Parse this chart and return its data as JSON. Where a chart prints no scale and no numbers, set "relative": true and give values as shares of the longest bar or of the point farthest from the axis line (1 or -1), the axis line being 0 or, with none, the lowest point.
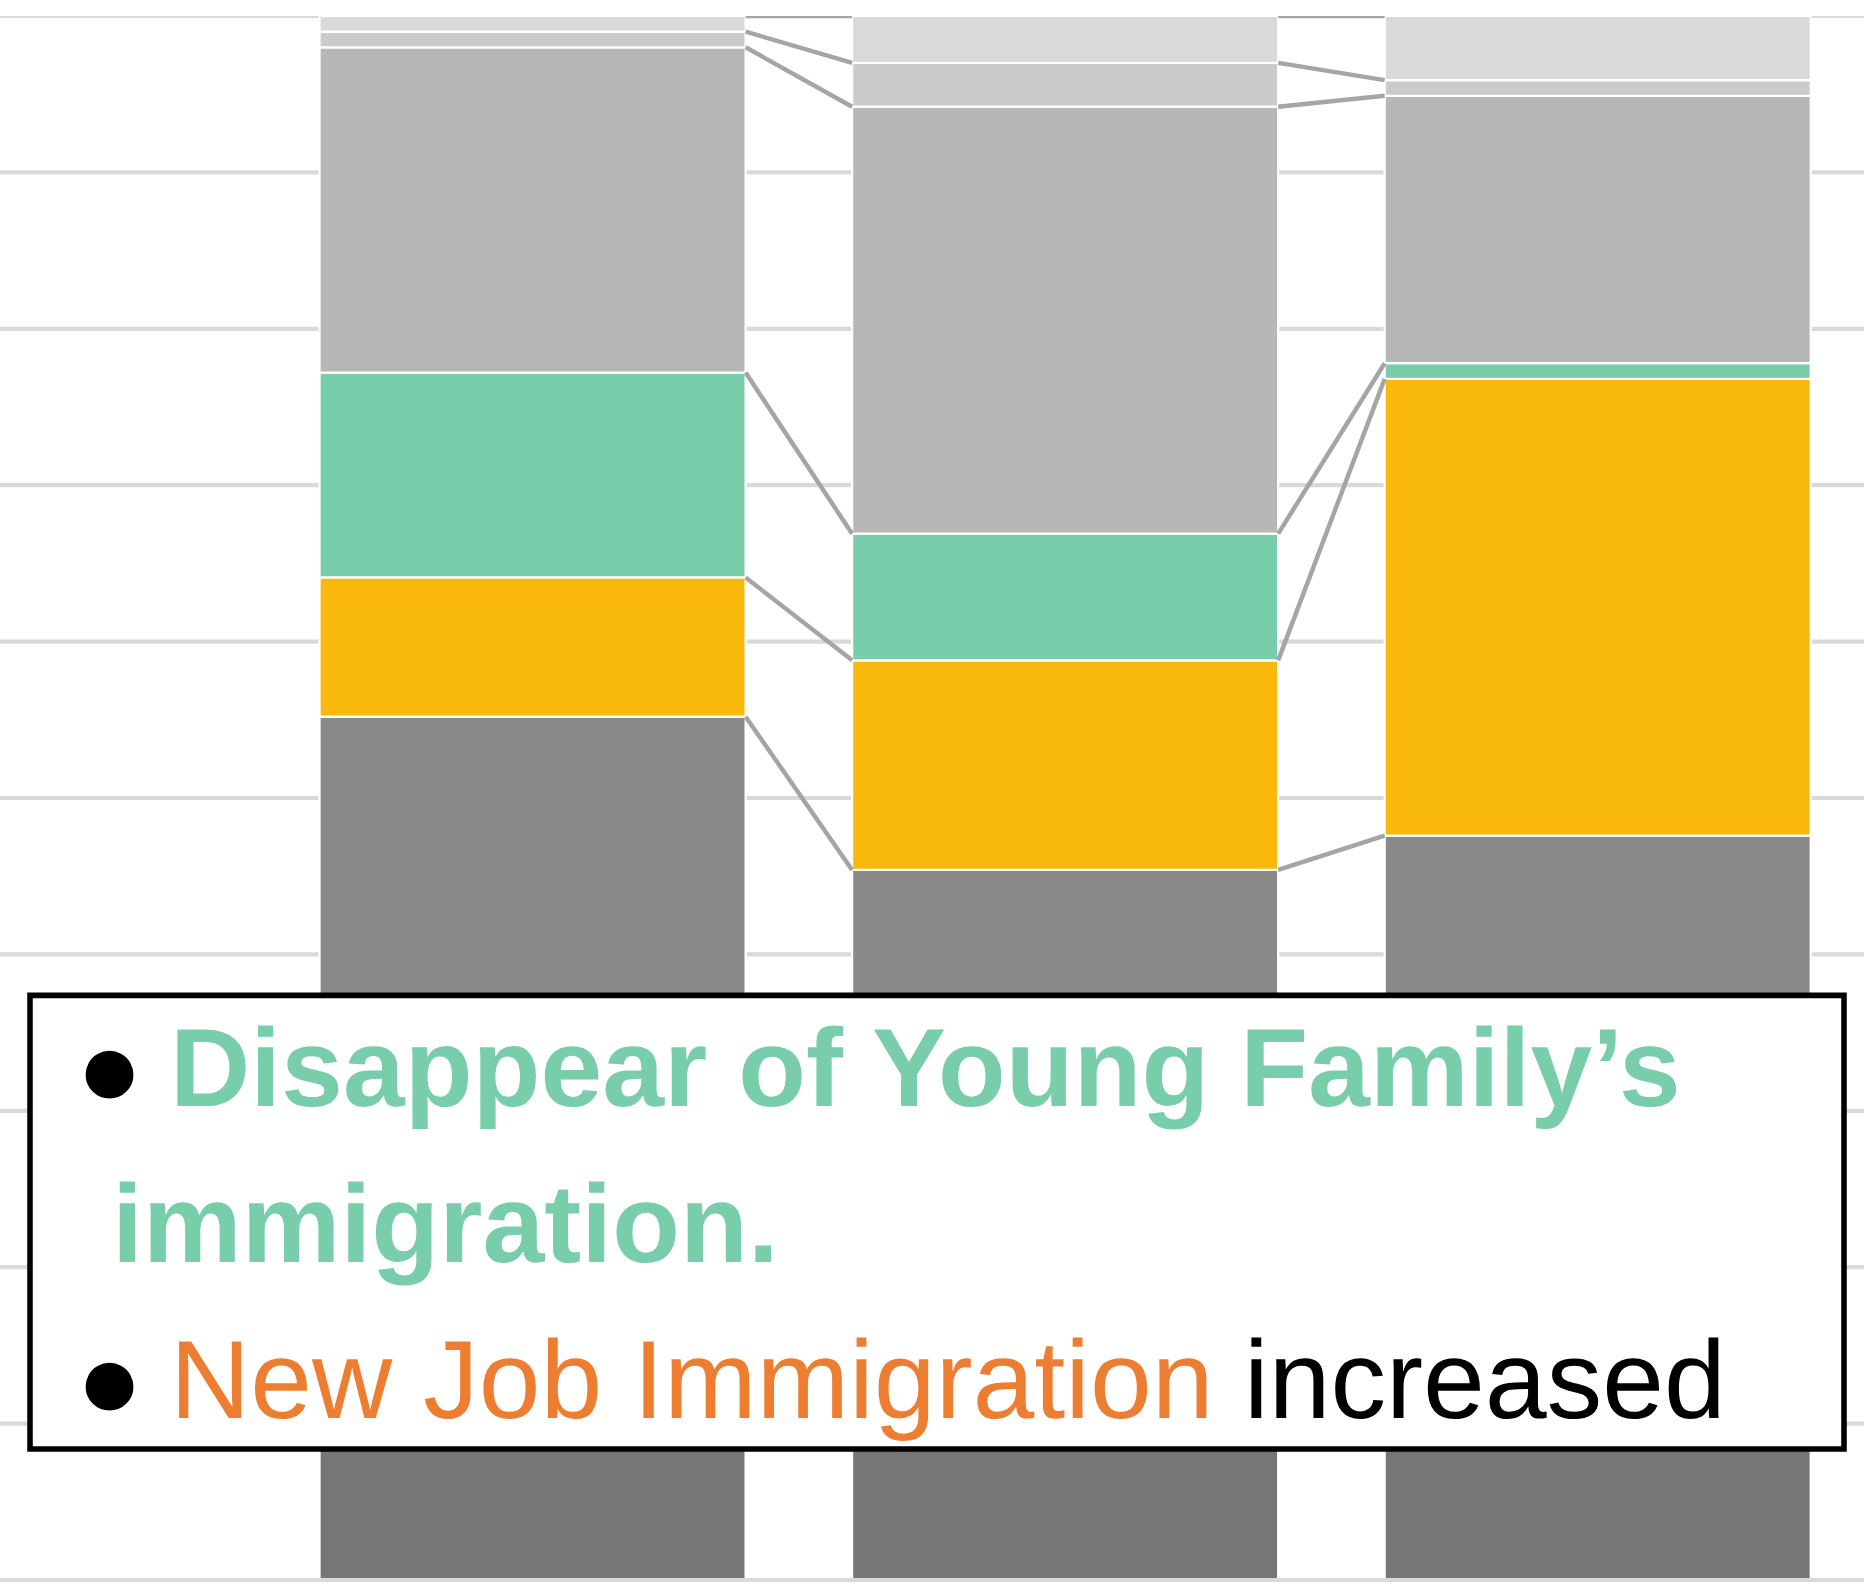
{
  "chart_data": {
    "type": "bar",
    "relative": true,
    "stacked": true,
    "grid": "y",
    "categories": [
      null,
      null,
      null
    ],
    "series": [
      {
        "color": "#767676",
        "values": [
          0.084,
          0.084,
          0.084
        ]
      },
      {
        "color": "#898989",
        "values": [
          0.468,
          0.37,
          0.392
        ]
      },
      {
        "color": "#f8b90c",
        "values": [
          0.089,
          0.134,
          0.292
        ]
      },
      {
        "color": "#78cdaa",
        "values": [
          0.131,
          0.081,
          0.01
        ]
      },
      {
        "color": "#b7b7b7",
        "values": [
          0.208,
          0.273,
          0.171
        ]
      },
      {
        "color": "#cbcbcb",
        "values": [
          0.01,
          0.028,
          0.01
        ]
      },
      {
        "color": "#d9d9d9",
        "values": [
          0.01,
          0.03,
          0.041
        ]
      }
    ],
    "annotations": [
      "●Disappear of Young Family’s immigration.",
      "●New Job Immigration increased"
    ]
  }
}
